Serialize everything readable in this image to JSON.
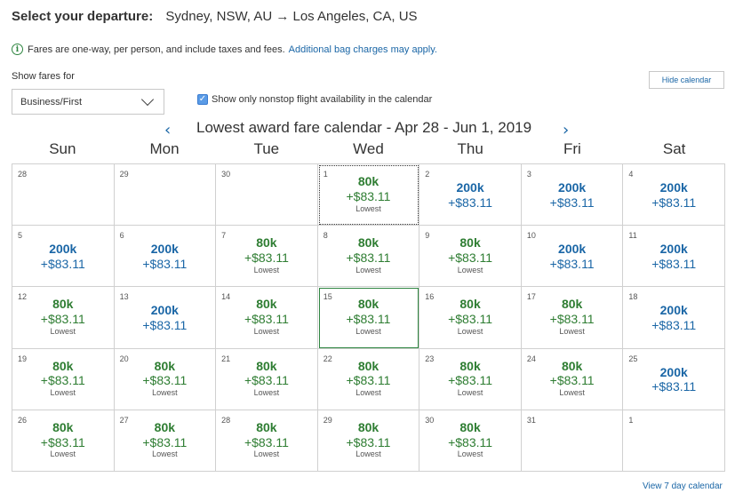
{
  "header": {
    "label": "Select your departure:",
    "route": "Sydney, NSW, AU → Los Angeles, CA, US"
  },
  "notice": {
    "icon": "info-icon",
    "text": "Fares are one-way, per person, and include taxes and fees.",
    "link": "Additional bag charges may apply."
  },
  "controls": {
    "show_fares_label": "Show fares for",
    "cabin_selected": "Business/First",
    "nonstop_label": "Show only nonstop flight availability in the calendar",
    "nonstop_checked": true,
    "hide_calendar": "Hide calendar"
  },
  "calendar": {
    "title": "Lowest award fare calendar - Apr 28 - Jun 1, 2019",
    "prev_glyph": "‹",
    "next_glyph": "›",
    "weekdays": [
      "Sun",
      "Mon",
      "Tue",
      "Wed",
      "Thu",
      "Fri",
      "Sat"
    ],
    "colors": {
      "lowest": "#2e7d32",
      "regular": "#1a66a6"
    },
    "cells": [
      {
        "day": "28"
      },
      {
        "day": "29"
      },
      {
        "day": "30"
      },
      {
        "day": "1",
        "miles": "80k",
        "tax": "+$83.11",
        "note": "Lowest",
        "state": "focused"
      },
      {
        "day": "2",
        "miles": "200k",
        "tax": "+$83.11"
      },
      {
        "day": "3",
        "miles": "200k",
        "tax": "+$83.11"
      },
      {
        "day": "4",
        "miles": "200k",
        "tax": "+$83.11"
      },
      {
        "day": "5",
        "miles": "200k",
        "tax": "+$83.11"
      },
      {
        "day": "6",
        "miles": "200k",
        "tax": "+$83.11"
      },
      {
        "day": "7",
        "miles": "80k",
        "tax": "+$83.11",
        "note": "Lowest"
      },
      {
        "day": "8",
        "miles": "80k",
        "tax": "+$83.11",
        "note": "Lowest"
      },
      {
        "day": "9",
        "miles": "80k",
        "tax": "+$83.11",
        "note": "Lowest"
      },
      {
        "day": "10",
        "miles": "200k",
        "tax": "+$83.11"
      },
      {
        "day": "11",
        "miles": "200k",
        "tax": "+$83.11"
      },
      {
        "day": "12",
        "miles": "80k",
        "tax": "+$83.11",
        "note": "Lowest"
      },
      {
        "day": "13",
        "miles": "200k",
        "tax": "+$83.11"
      },
      {
        "day": "14",
        "miles": "80k",
        "tax": "+$83.11",
        "note": "Lowest"
      },
      {
        "day": "15",
        "miles": "80k",
        "tax": "+$83.11",
        "note": "Lowest",
        "state": "selected"
      },
      {
        "day": "16",
        "miles": "80k",
        "tax": "+$83.11",
        "note": "Lowest"
      },
      {
        "day": "17",
        "miles": "80k",
        "tax": "+$83.11",
        "note": "Lowest"
      },
      {
        "day": "18",
        "miles": "200k",
        "tax": "+$83.11"
      },
      {
        "day": "19",
        "miles": "80k",
        "tax": "+$83.11",
        "note": "Lowest"
      },
      {
        "day": "20",
        "miles": "80k",
        "tax": "+$83.11",
        "note": "Lowest"
      },
      {
        "day": "21",
        "miles": "80k",
        "tax": "+$83.11",
        "note": "Lowest"
      },
      {
        "day": "22",
        "miles": "80k",
        "tax": "+$83.11",
        "note": "Lowest"
      },
      {
        "day": "23",
        "miles": "80k",
        "tax": "+$83.11",
        "note": "Lowest"
      },
      {
        "day": "24",
        "miles": "80k",
        "tax": "+$83.11",
        "note": "Lowest"
      },
      {
        "day": "25",
        "miles": "200k",
        "tax": "+$83.11"
      },
      {
        "day": "26",
        "miles": "80k",
        "tax": "+$83.11",
        "note": "Lowest"
      },
      {
        "day": "27",
        "miles": "80k",
        "tax": "+$83.11",
        "note": "Lowest"
      },
      {
        "day": "28",
        "miles": "80k",
        "tax": "+$83.11",
        "note": "Lowest"
      },
      {
        "day": "29",
        "miles": "80k",
        "tax": "+$83.11",
        "note": "Lowest"
      },
      {
        "day": "30",
        "miles": "80k",
        "tax": "+$83.11",
        "note": "Lowest"
      },
      {
        "day": "31"
      },
      {
        "day": "1"
      }
    ]
  },
  "footer": {
    "view7": "View 7 day calendar"
  }
}
